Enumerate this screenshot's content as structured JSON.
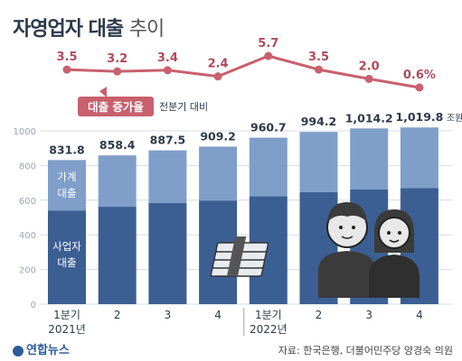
{
  "header": {
    "title_main": "자영업자 대출",
    "title_sub": "추이"
  },
  "source_text": "자료: 한국은행, 더불어민주당 양경숙 의원",
  "logo_text": "연합뉴스",
  "chart_data": [
    {
      "type": "line",
      "name": "growth",
      "legend_label": "대출 증가율",
      "legend_note": "전분기 대비",
      "values": [
        3.5,
        3.2,
        3.4,
        2.4,
        5.7,
        3.5,
        2.0,
        0.6
      ],
      "value_labels": [
        "3.5",
        "3.2",
        "3.4",
        "2.4",
        "5.7",
        "3.5",
        "2.0",
        "0.6%"
      ],
      "color": "#c9606e"
    },
    {
      "type": "bar",
      "stacked": true,
      "categories": [
        "1분기",
        "2",
        "3",
        "4",
        "1분기",
        "2",
        "3",
        "4"
      ],
      "year_labels": [
        "2021년",
        "2022년"
      ],
      "totals": [
        831.8,
        858.4,
        887.5,
        909.2,
        960.7,
        994.2,
        1014.2,
        1019.8
      ],
      "total_labels": [
        "831.8",
        "858.4",
        "887.5",
        "909.2",
        "960.7",
        "994.2",
        "1,014.2",
        "1,019.8"
      ],
      "unit": "조원",
      "series": [
        {
          "name": "사업자 대출",
          "color": "#3c5f93",
          "values": [
            540,
            562,
            584,
            598,
            622,
            646,
            662,
            670
          ]
        },
        {
          "name": "가계 대출",
          "color": "#7f9fca",
          "values": [
            291.8,
            296.4,
            303.5,
            311.2,
            338.7,
            348.2,
            352.2,
            349.8
          ]
        }
      ],
      "series_labels": [
        [
          "사업자",
          "대출"
        ],
        [
          "가계",
          "대출"
        ]
      ],
      "y_ticks": [
        0,
        200,
        400,
        600,
        800,
        1000
      ],
      "ylim": [
        0,
        1000
      ]
    }
  ],
  "illustration": {
    "icons": [
      "money-stack-icon",
      "shop-owners-icon"
    ]
  }
}
